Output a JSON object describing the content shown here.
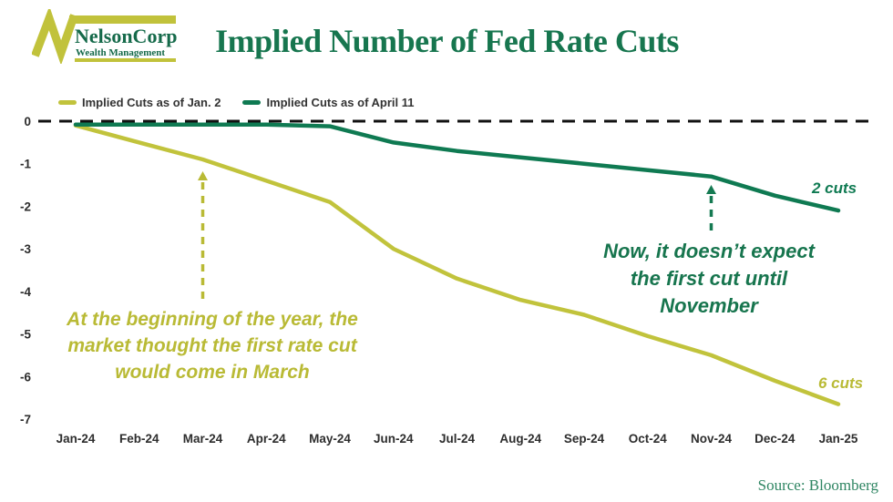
{
  "logo": {
    "name": "NelsonCorp",
    "tagline": "Wealth Management",
    "mark_color": "#c1c23b",
    "text_color": "#156a4a"
  },
  "title": "Implied Number of Fed Rate Cuts",
  "legend": [
    {
      "label": "Implied Cuts as of Jan. 2",
      "color": "#c1c33c"
    },
    {
      "label": "Implied Cuts as of April 11",
      "color": "#0f7a52"
    }
  ],
  "annotations": {
    "jan2_note": {
      "lines": [
        "At the beginning of the year, the",
        "market thought the first rate cut",
        "would come in March"
      ],
      "color": "#b9ba35"
    },
    "april11_note": {
      "lines": [
        "Now, it doesn’t expect",
        "the first cut until",
        "November"
      ],
      "color": "#17754e"
    },
    "april11_end_label": "2 cuts",
    "jan2_end_label": "6 cuts"
  },
  "source": "Source: Bloomberg",
  "chart_data": {
    "type": "line",
    "categories": [
      "Jan-24",
      "Feb-24",
      "Mar-24",
      "Apr-24",
      "May-24",
      "Jun-24",
      "Jul-24",
      "Aug-24",
      "Sep-24",
      "Oct-24",
      "Nov-24",
      "Dec-24",
      "Jan-25"
    ],
    "series": [
      {
        "name": "Implied Cuts as of Jan. 2",
        "color": "#c1c33c",
        "values": [
          -0.1,
          -0.5,
          -0.9,
          -1.4,
          -1.9,
          -3.0,
          -3.7,
          -4.2,
          -4.55,
          -5.05,
          -5.5,
          -6.1,
          -6.65
        ]
      },
      {
        "name": "Implied Cuts as of April 11",
        "color": "#0f7a52",
        "values": [
          -0.08,
          -0.08,
          -0.08,
          -0.08,
          -0.12,
          -0.5,
          -0.7,
          -0.85,
          -1.0,
          -1.15,
          -1.3,
          -1.75,
          -2.1
        ]
      }
    ],
    "title": "Implied Number of Fed Rate Cuts",
    "xlabel": "",
    "ylabel": "",
    "yticks": [
      0,
      -1,
      -2,
      -3,
      -4,
      -5,
      -6,
      -7
    ],
    "ylim": [
      -7.5,
      0.5
    ],
    "grid": false,
    "zero_line": "dashed-black",
    "legend_position": "top-left"
  }
}
